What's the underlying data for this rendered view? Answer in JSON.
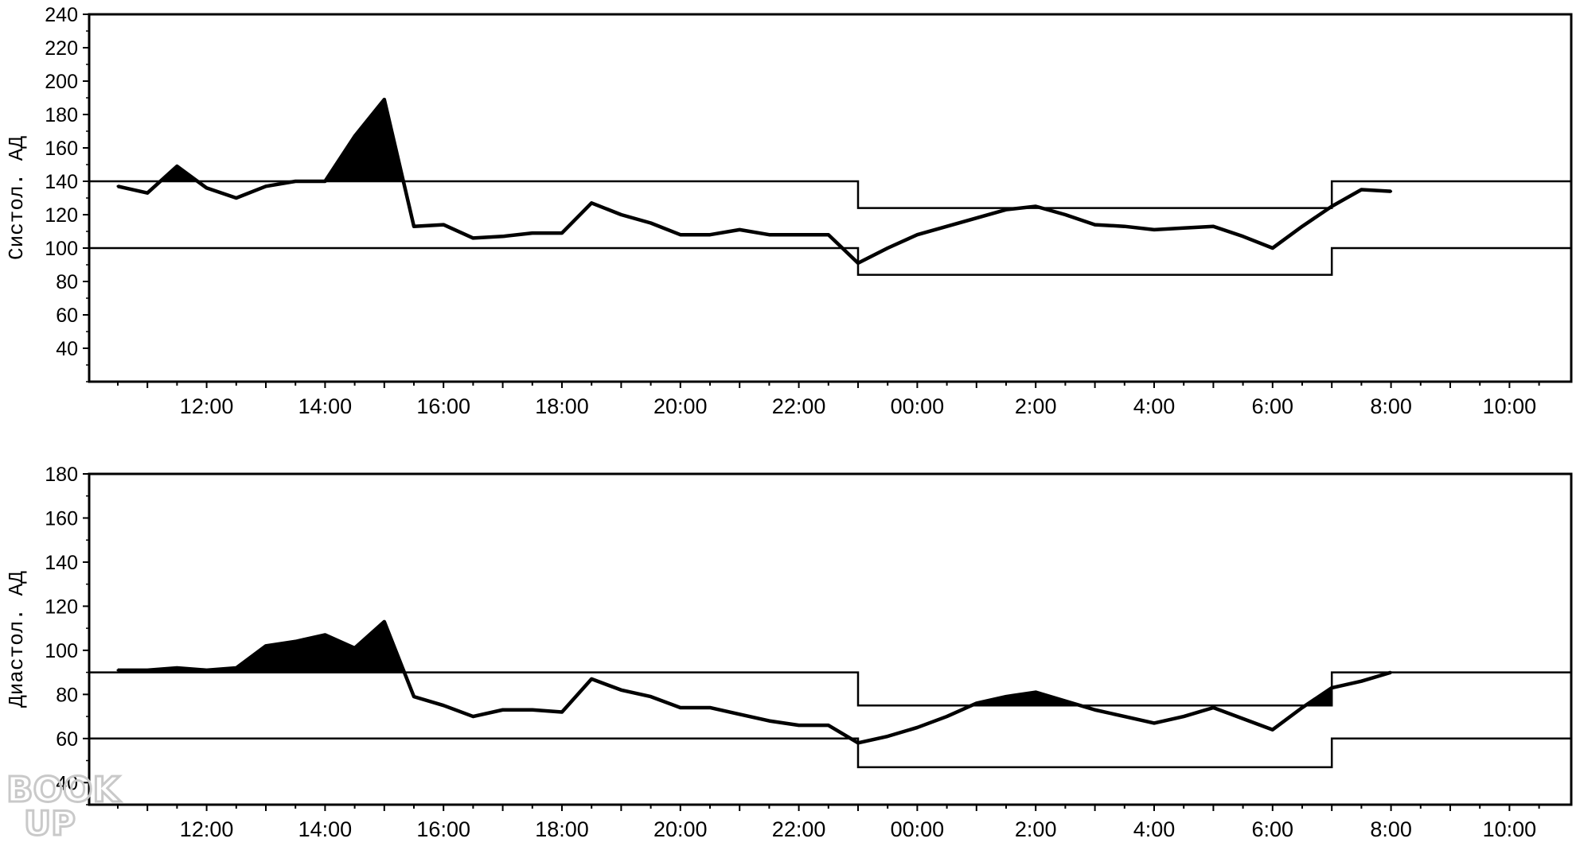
{
  "watermark": {
    "line1": "BOOK",
    "line2": "UP"
  },
  "chart_data": [
    {
      "type": "line",
      "ylabel": "Систол. АД",
      "ylim": [
        20,
        240
      ],
      "yticks": [
        40,
        60,
        80,
        100,
        120,
        140,
        160,
        180,
        200,
        220,
        240
      ],
      "xlim": [
        10,
        35
      ],
      "x_unit": "hours (clock time, wraps at 24:00)",
      "xticks": [
        {
          "x": 12,
          "label": "12:00"
        },
        {
          "x": 14,
          "label": "14:00"
        },
        {
          "x": 16,
          "label": "16:00"
        },
        {
          "x": 18,
          "label": "18:00"
        },
        {
          "x": 20,
          "label": "20:00"
        },
        {
          "x": 22,
          "label": "22:00"
        },
        {
          "x": 24,
          "label": "00:00"
        },
        {
          "x": 26,
          "label": "2:00"
        },
        {
          "x": 28,
          "label": "4:00"
        },
        {
          "x": 30,
          "label": "6:00"
        },
        {
          "x": 32,
          "label": "8:00"
        },
        {
          "x": 34,
          "label": "10:00"
        }
      ],
      "bands": {
        "day_upper": 140,
        "day_lower": 100,
        "night_upper": 124,
        "night_lower": 84,
        "night_start": 23,
        "night_end": 31
      },
      "series": [
        {
          "x": [
            10.5,
            11,
            11.5,
            12,
            12.5,
            13,
            13.5,
            14,
            14.5,
            15,
            15.5,
            16,
            16.5,
            17,
            17.5,
            18,
            18.5,
            19,
            19.5,
            20,
            20.5,
            21,
            21.5,
            22,
            22.5,
            23,
            23.5,
            24,
            24.5,
            25,
            25.5,
            26,
            26.5,
            27,
            27.5,
            28,
            28.5,
            29,
            29.5,
            30,
            30.5,
            31,
            31.5,
            32
          ],
          "values": [
            137,
            133,
            149,
            136,
            130,
            137,
            140,
            140,
            167,
            189,
            113,
            114,
            106,
            107,
            109,
            109,
            127,
            120,
            115,
            108,
            108,
            111,
            108,
            108,
            108,
            91,
            100,
            108,
            113,
            118,
            123,
            125,
            120,
            114,
            113,
            111,
            112,
            113,
            107,
            100,
            113,
            125,
            135,
            134
          ]
        }
      ]
    },
    {
      "type": "line",
      "ylabel": "Диастол. АД",
      "ylim": [
        30,
        180
      ],
      "yticks": [
        40,
        60,
        80,
        100,
        120,
        140,
        160,
        180
      ],
      "xlim": [
        10,
        35
      ],
      "xticks": [
        {
          "x": 12,
          "label": "12:00"
        },
        {
          "x": 14,
          "label": "14:00"
        },
        {
          "x": 16,
          "label": "16:00"
        },
        {
          "x": 18,
          "label": "18:00"
        },
        {
          "x": 20,
          "label": "20:00"
        },
        {
          "x": 22,
          "label": "22:00"
        },
        {
          "x": 24,
          "label": "00:00"
        },
        {
          "x": 26,
          "label": "2:00"
        },
        {
          "x": 28,
          "label": "4:00"
        },
        {
          "x": 30,
          "label": "6:00"
        },
        {
          "x": 32,
          "label": "8:00"
        },
        {
          "x": 34,
          "label": "10:00"
        }
      ],
      "bands": {
        "day_upper": 90,
        "day_lower": 60,
        "night_upper": 75,
        "night_lower": 47,
        "night_start": 23,
        "night_end": 31
      },
      "series": [
        {
          "x": [
            10.5,
            11,
            11.5,
            12,
            12.5,
            13,
            13.5,
            14,
            14.5,
            15,
            15.5,
            16,
            16.5,
            17,
            17.5,
            18,
            18.5,
            19,
            19.5,
            20,
            20.5,
            21,
            21.5,
            22,
            22.5,
            23,
            23.5,
            24,
            24.5,
            25,
            25.5,
            26,
            26.5,
            27,
            27.5,
            28,
            28.5,
            29,
            29.5,
            30,
            30.5,
            31,
            31.5,
            32
          ],
          "values": [
            91,
            91,
            92,
            91,
            92,
            102,
            104,
            107,
            101,
            113,
            79,
            75,
            70,
            73,
            73,
            72,
            87,
            82,
            79,
            74,
            74,
            71,
            68,
            66,
            66,
            58,
            61,
            65,
            70,
            76,
            79,
            81,
            77,
            73,
            70,
            67,
            70,
            74,
            69,
            64,
            74,
            83,
            86,
            90
          ]
        }
      ]
    }
  ]
}
